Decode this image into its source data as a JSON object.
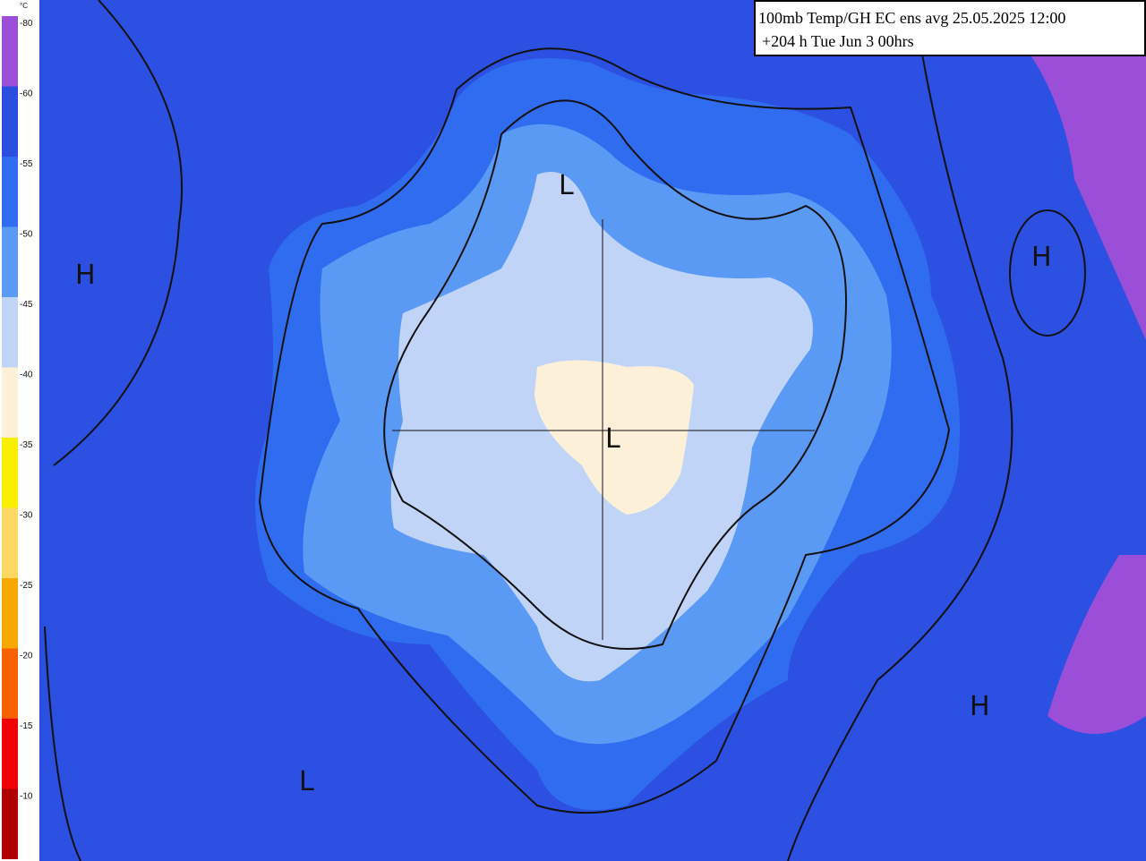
{
  "header": {
    "title": "100mb Temp/GH  EC ens avg 25.05.2025 12:00",
    "subtitle": "+204 h Tue Jun 3 00hrs"
  },
  "legend": {
    "unit": "°C",
    "labels": [
      "-80",
      "-60",
      "-55",
      "-50",
      "-45",
      "-40",
      "-35",
      "-30",
      "-25",
      "-20",
      "-15",
      "-10"
    ],
    "colors": [
      "#9b4fd8",
      "#2a4fe0",
      "#2f6cf0",
      "#5a9af5",
      "#c0d4f8",
      "#fdf0d8",
      "#f8f000",
      "#fcd860",
      "#f8a800",
      "#f86000",
      "#f00000",
      "#b00000"
    ]
  },
  "markers": [
    "L",
    "L",
    "H",
    "H",
    "H",
    "L"
  ]
}
